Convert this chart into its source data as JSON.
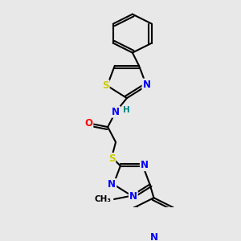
{
  "bg_color": "#e8e8e8",
  "bond_color": "#000000",
  "bond_width": 1.5,
  "atom_colors": {
    "N": "#0000ff",
    "O": "#ff0000",
    "S": "#cccc00",
    "H": "#008080",
    "C": "#000000"
  },
  "font_size": 8.5,
  "fig_size": [
    3.0,
    3.0
  ],
  "dpi": 100
}
